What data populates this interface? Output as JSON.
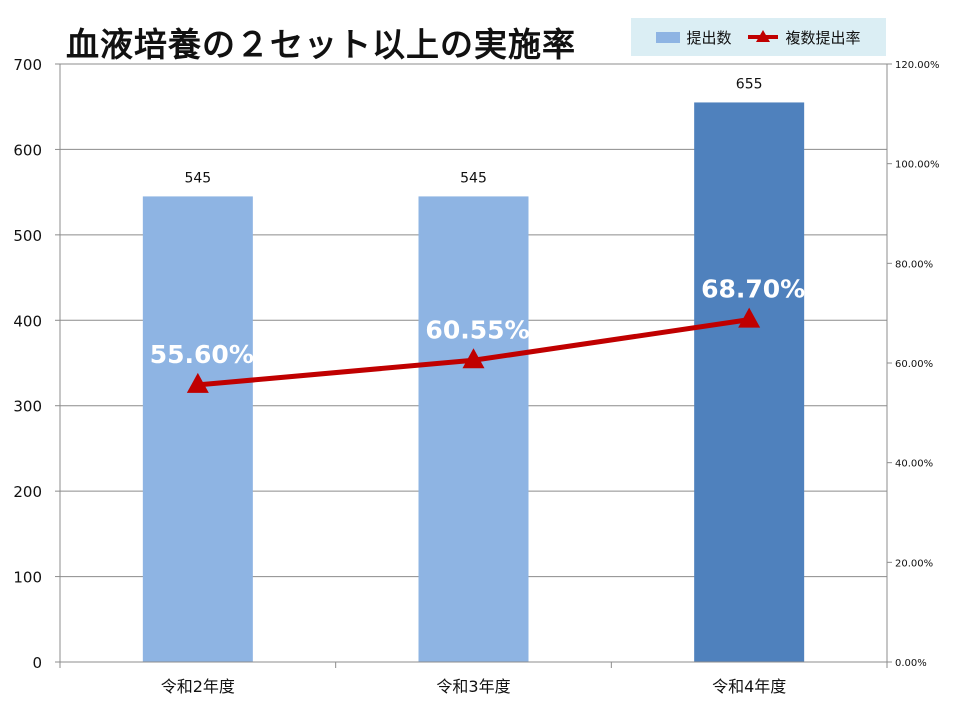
{
  "chart_data": {
    "type": "bar",
    "title": "血液培養の２セット以上の実施率",
    "categories": [
      "令和2年度",
      "令和3年度",
      "令和4年度"
    ],
    "series": [
      {
        "name": "提出数",
        "type": "bar",
        "axis": "left",
        "values": [
          545,
          545,
          655
        ],
        "data_labels": [
          "545",
          "545",
          "655"
        ],
        "colors": [
          "#8eb4e3",
          "#8eb4e3",
          "#4f81bd"
        ]
      },
      {
        "name": "複数提出率",
        "type": "line",
        "axis": "right",
        "values": [
          55.6,
          60.55,
          68.7
        ],
        "data_labels": [
          "55.60%",
          "60.55%",
          "68.70%"
        ],
        "color": "#c00000",
        "marker": "triangle"
      }
    ],
    "y_left": {
      "min": 0,
      "max": 700,
      "ticks": [
        0,
        100,
        200,
        300,
        400,
        500,
        600,
        700
      ],
      "tick_labels": [
        "0",
        "100",
        "200",
        "300",
        "400",
        "500",
        "600",
        "700"
      ]
    },
    "y_right": {
      "min": 0,
      "max": 120,
      "ticks": [
        0,
        20,
        40,
        60,
        80,
        100,
        120
      ],
      "tick_labels": [
        "0.00%",
        "20.00%",
        "40.00%",
        "60.00%",
        "80.00%",
        "100.00%",
        "120.00%"
      ]
    },
    "grid": true,
    "legend_position": "top-right"
  }
}
